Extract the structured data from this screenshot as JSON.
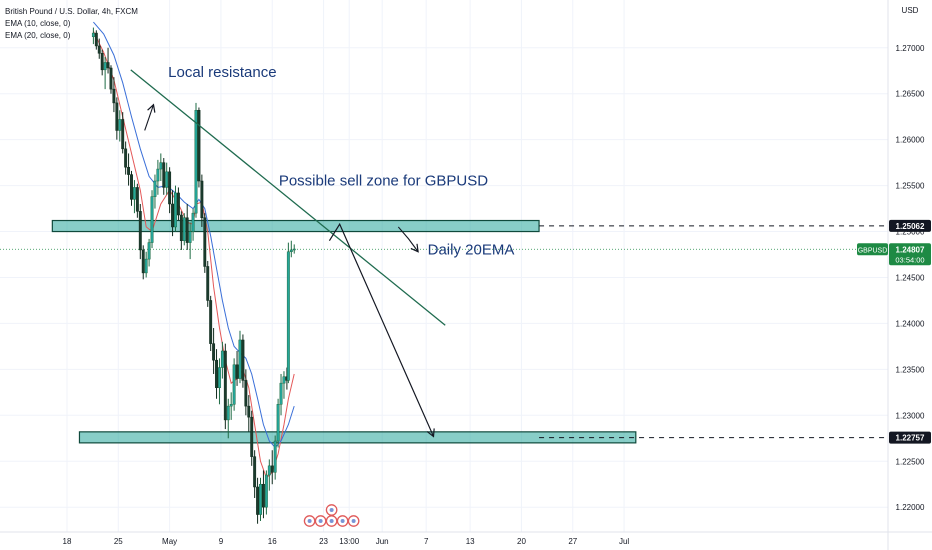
{
  "header": {
    "symbol_title": "British Pound / U.S. Dollar, 4h, FXCM",
    "indicators": [
      "EMA (10, close, 0)",
      "EMA (20, close, 0)"
    ]
  },
  "chart_data": {
    "type": "candlestick",
    "currency": "USD",
    "y_ticks": [
      "1.27000",
      "1.26500",
      "1.26000",
      "1.25500",
      "1.25000",
      "1.24500",
      "1.24000",
      "1.23500",
      "1.23000",
      "1.22500",
      "1.22000"
    ],
    "ylim": [
      1.2173,
      1.2752
    ],
    "x_ticks": [
      {
        "label": "18",
        "day": 18
      },
      {
        "label": "25",
        "day": 25
      },
      {
        "label": "May",
        "day": 32
      },
      {
        "label": "9",
        "day": 39
      },
      {
        "label": "16",
        "day": 46
      },
      {
        "label": "23",
        "day": 53
      },
      {
        "label": "13:00",
        "day": 56.5
      },
      {
        "label": "Jun",
        "day": 61
      },
      {
        "label": "7",
        "day": 67
      },
      {
        "label": "13",
        "day": 73
      },
      {
        "label": "20",
        "day": 80
      },
      {
        "label": "27",
        "day": 87
      },
      {
        "label": "Jul",
        "day": 94
      }
    ],
    "candles": [
      [
        21.6,
        1.2712,
        1.2722,
        1.2704,
        1.2716
      ],
      [
        22.0,
        1.2716,
        1.2719,
        1.2698,
        1.2702
      ],
      [
        22.4,
        1.2702,
        1.271,
        1.2688,
        1.2694
      ],
      [
        22.8,
        1.2694,
        1.2698,
        1.267,
        1.2676
      ],
      [
        23.2,
        1.2676,
        1.269,
        1.2655,
        1.2684
      ],
      [
        23.6,
        1.2684,
        1.27,
        1.2672,
        1.2678
      ],
      [
        24.0,
        1.2678,
        1.2681,
        1.265,
        1.2655
      ],
      [
        24.4,
        1.2655,
        1.2668,
        1.263,
        1.264
      ],
      [
        24.8,
        1.264,
        1.2646,
        1.26,
        1.261
      ],
      [
        25.2,
        1.261,
        1.2632,
        1.2598,
        1.2622
      ],
      [
        25.6,
        1.2622,
        1.263,
        1.2585,
        1.259
      ],
      [
        26.0,
        1.259,
        1.2598,
        1.2562,
        1.257
      ],
      [
        26.4,
        1.257,
        1.2585,
        1.255,
        1.2562
      ],
      [
        26.8,
        1.2562,
        1.2566,
        1.2528,
        1.2535
      ],
      [
        27.2,
        1.2535,
        1.2556,
        1.252,
        1.2548
      ],
      [
        27.6,
        1.2548,
        1.2552,
        1.2515,
        1.2522
      ],
      [
        28.0,
        1.2522,
        1.253,
        1.247,
        1.248
      ],
      [
        28.4,
        1.248,
        1.2485,
        1.2448,
        1.2455
      ],
      [
        28.8,
        1.2455,
        1.2478,
        1.245,
        1.247
      ],
      [
        29.2,
        1.247,
        1.2492,
        1.2462,
        1.2488
      ],
      [
        29.6,
        1.2488,
        1.2545,
        1.2482,
        1.2538
      ],
      [
        30.0,
        1.2538,
        1.2562,
        1.2525,
        1.2555
      ],
      [
        30.4,
        1.2555,
        1.2578,
        1.254,
        1.2568
      ],
      [
        30.8,
        1.2568,
        1.2585,
        1.2555,
        1.2575
      ],
      [
        31.2,
        1.2575,
        1.258,
        1.254,
        1.2548
      ],
      [
        31.6,
        1.2548,
        1.2575,
        1.254,
        1.2565
      ],
      [
        32.0,
        1.2565,
        1.257,
        1.252,
        1.253
      ],
      [
        32.4,
        1.253,
        1.2545,
        1.2495,
        1.2505
      ],
      [
        32.8,
        1.2505,
        1.255,
        1.25,
        1.2542
      ],
      [
        33.2,
        1.2542,
        1.2548,
        1.2512,
        1.2518
      ],
      [
        33.6,
        1.2518,
        1.2522,
        1.248,
        1.249
      ],
      [
        34.0,
        1.249,
        1.252,
        1.2485,
        1.2515
      ],
      [
        34.4,
        1.2515,
        1.253,
        1.248,
        1.2488
      ],
      [
        34.8,
        1.2488,
        1.251,
        1.247,
        1.25
      ],
      [
        35.2,
        1.25,
        1.2525,
        1.249,
        1.252
      ],
      [
        35.6,
        1.252,
        1.264,
        1.2515,
        1.2632
      ],
      [
        36.0,
        1.2632,
        1.2635,
        1.2548,
        1.2555
      ],
      [
        36.4,
        1.2555,
        1.2562,
        1.2505,
        1.2515
      ],
      [
        36.8,
        1.2515,
        1.252,
        1.2455,
        1.2462
      ],
      [
        37.2,
        1.2462,
        1.2468,
        1.2418,
        1.2425
      ],
      [
        37.6,
        1.2425,
        1.243,
        1.237,
        1.2378
      ],
      [
        38.0,
        1.2378,
        1.2395,
        1.2345,
        1.236
      ],
      [
        38.4,
        1.236,
        1.2372,
        1.2318,
        1.233
      ],
      [
        38.8,
        1.233,
        1.2362,
        1.2312,
        1.2352
      ],
      [
        39.2,
        1.2352,
        1.238,
        1.234,
        1.237
      ],
      [
        39.6,
        1.237,
        1.2378,
        1.2285,
        1.2295
      ],
      [
        40.0,
        1.2295,
        1.2318,
        1.2275,
        1.231
      ],
      [
        40.4,
        1.231,
        1.2325,
        1.2295,
        1.2312
      ],
      [
        40.8,
        1.2312,
        1.2362,
        1.2305,
        1.2355
      ],
      [
        41.2,
        1.2355,
        1.237,
        1.2332,
        1.234
      ],
      [
        41.6,
        1.234,
        1.2392,
        1.2335,
        1.2382
      ],
      [
        42.0,
        1.2382,
        1.2388,
        1.233,
        1.2338
      ],
      [
        42.4,
        1.2338,
        1.235,
        1.23,
        1.231
      ],
      [
        42.8,
        1.231,
        1.2322,
        1.2282,
        1.2298
      ],
      [
        43.2,
        1.2298,
        1.2305,
        1.2245,
        1.2255
      ],
      [
        43.6,
        1.2255,
        1.2262,
        1.221,
        1.2222
      ],
      [
        44.0,
        1.2222,
        1.2232,
        1.2182,
        1.2192
      ],
      [
        44.4,
        1.2192,
        1.2232,
        1.2185,
        1.2225
      ],
      [
        44.8,
        1.2225,
        1.224,
        1.2188,
        1.22
      ],
      [
        45.2,
        1.22,
        1.224,
        1.2192,
        1.2235
      ],
      [
        45.6,
        1.2235,
        1.2252,
        1.2218,
        1.2245
      ],
      [
        46.0,
        1.2245,
        1.2262,
        1.2225,
        1.2238
      ],
      [
        46.4,
        1.2238,
        1.2278,
        1.223,
        1.2272
      ],
      [
        46.8,
        1.2272,
        1.2318,
        1.2265,
        1.2312
      ],
      [
        47.2,
        1.2312,
        1.2345,
        1.23,
        1.2335
      ],
      [
        47.6,
        1.2335,
        1.2348,
        1.2318,
        1.2342
      ],
      [
        48.0,
        1.2342,
        1.2352,
        1.2328,
        1.2338
      ],
      [
        48.2,
        1.2338,
        1.2488,
        1.2335,
        1.2478
      ],
      [
        48.6,
        1.2478,
        1.249,
        1.2472,
        1.248
      ],
      [
        49.0,
        1.248,
        1.2486,
        1.2476,
        1.2481
      ]
    ],
    "ema_series": [
      {
        "name": "EMA (10, close, 0)",
        "color": "#e45858",
        "points": [
          [
            21.6,
            1.2718
          ],
          [
            23.0,
            1.2695
          ],
          [
            24.4,
            1.2665
          ],
          [
            25.6,
            1.2625
          ],
          [
            26.8,
            1.2585
          ],
          [
            28.0,
            1.2545
          ],
          [
            28.8,
            1.2505
          ],
          [
            29.6,
            1.25
          ],
          [
            30.8,
            1.253
          ],
          [
            32.0,
            1.2545
          ],
          [
            33.2,
            1.253
          ],
          [
            34.4,
            1.251
          ],
          [
            35.2,
            1.2508
          ],
          [
            35.6,
            1.253
          ],
          [
            36.4,
            1.2532
          ],
          [
            37.2,
            1.25
          ],
          [
            38.0,
            1.244
          ],
          [
            38.8,
            1.2395
          ],
          [
            39.6,
            1.236
          ],
          [
            40.4,
            1.2335
          ],
          [
            41.2,
            1.234
          ],
          [
            42.0,
            1.235
          ],
          [
            42.8,
            1.233
          ],
          [
            43.6,
            1.229
          ],
          [
            44.4,
            1.225
          ],
          [
            45.2,
            1.2232
          ],
          [
            46.0,
            1.2238
          ],
          [
            46.8,
            1.2258
          ],
          [
            47.6,
            1.229
          ],
          [
            48.2,
            1.2318
          ],
          [
            49.0,
            1.2345
          ]
        ]
      },
      {
        "name": "EMA (20, close, 0)",
        "color": "#3a6fd8",
        "points": [
          [
            21.6,
            1.2728
          ],
          [
            23.0,
            1.2715
          ],
          [
            24.4,
            1.2692
          ],
          [
            25.6,
            1.2662
          ],
          [
            26.8,
            1.2625
          ],
          [
            28.0,
            1.259
          ],
          [
            29.2,
            1.256
          ],
          [
            30.4,
            1.2548
          ],
          [
            31.6,
            1.255
          ],
          [
            32.8,
            1.2542
          ],
          [
            34.0,
            1.2532
          ],
          [
            35.2,
            1.2525
          ],
          [
            36.0,
            1.2535
          ],
          [
            36.8,
            1.2525
          ],
          [
            37.6,
            1.2495
          ],
          [
            38.4,
            1.246
          ],
          [
            39.2,
            1.2425
          ],
          [
            40.0,
            1.2395
          ],
          [
            40.8,
            1.2375
          ],
          [
            41.6,
            1.2368
          ],
          [
            42.4,
            1.2362
          ],
          [
            43.2,
            1.2345
          ],
          [
            44.0,
            1.2318
          ],
          [
            44.8,
            1.229
          ],
          [
            45.6,
            1.2272
          ],
          [
            46.4,
            1.2265
          ],
          [
            47.2,
            1.2272
          ],
          [
            48.2,
            1.229
          ],
          [
            49.0,
            1.231
          ]
        ]
      }
    ],
    "last_price": {
      "symbol": "GBPUSD",
      "price": "1.24807",
      "countdown": "03:54:00",
      "value": 1.24807,
      "color": "#1e8a44"
    },
    "horizontal_levels": [
      {
        "value": 1.25062,
        "label": "1.25062"
      },
      {
        "value": 1.22757,
        "label": "1.22757"
      }
    ],
    "zones": [
      {
        "x_start": 16.0,
        "x_end": 82.4,
        "y_low": 1.25,
        "y_high": 1.2512
      },
      {
        "x_start": 19.7,
        "x_end": 95.6,
        "y_low": 1.227,
        "y_high": 1.2282
      }
    ],
    "trendline": {
      "points": [
        [
          26.7,
          1.2676
        ],
        [
          69.6,
          1.2398
        ]
      ],
      "color": "#1f6b4f"
    },
    "projection": {
      "points": [
        [
          53.8,
          1.249
        ],
        [
          55.2,
          1.2508
        ],
        [
          68.0,
          1.2277
        ]
      ],
      "color": "#131722"
    },
    "annotations": [
      {
        "text": "Local resistance",
        "day": 31.8,
        "value": 1.2668
      },
      {
        "text": "Possible sell zone for GBPUSD",
        "day": 46.9,
        "value": 1.255
      },
      {
        "text": "Daily 20EMA",
        "day": 67.2,
        "value": 1.2475
      }
    ],
    "annotation_arrows": [
      {
        "points": [
          [
            28.6,
            1.261
          ],
          [
            29.8,
            1.2638
          ]
        ]
      },
      {
        "points": [
          [
            63.2,
            1.2505
          ],
          [
            64.6,
            1.2492
          ],
          [
            65.9,
            1.2478
          ]
        ]
      }
    ],
    "events": {
      "count": 6,
      "day": 54.1
    }
  }
}
